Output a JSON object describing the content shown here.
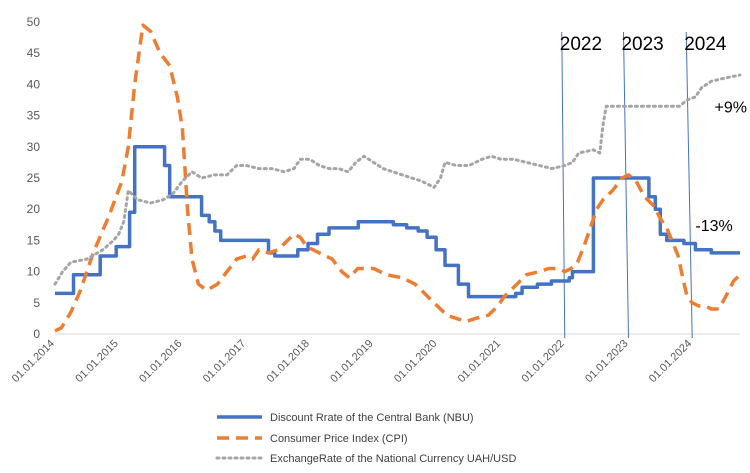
{
  "chart_data": {
    "type": "line",
    "title": "",
    "xlabel": "",
    "ylabel": "",
    "ylim": [
      0,
      50
    ],
    "yticks": [
      0,
      5,
      10,
      15,
      20,
      25,
      30,
      35,
      40,
      45,
      50
    ],
    "xlim": [
      2014.0,
      2024.75
    ],
    "x_tick_labels": [
      "01.01.2014",
      "01.01.2015",
      "01.01.2016",
      "01.01.2017",
      "01.01.2018",
      "01.01.2019",
      "01.01.2020",
      "01.01.2021",
      "01.01.2022",
      "01.01.2023",
      "01.01.2024"
    ],
    "x_tick_positions": [
      2014,
      2015,
      2016,
      2017,
      2018,
      2019,
      2020,
      2021,
      2022,
      2023,
      2024
    ],
    "grid": false,
    "legend_position": "bottom",
    "series": [
      {
        "name": "Discount Rrate of the Central Bank (NBU)",
        "color": "#4472C4",
        "style": "solid",
        "step": true,
        "points": [
          [
            2014.0,
            6.5
          ],
          [
            2014.29,
            9.5
          ],
          [
            2014.71,
            12.5
          ],
          [
            2014.96,
            14.0
          ],
          [
            2015.17,
            19.5
          ],
          [
            2015.25,
            30.0
          ],
          [
            2015.72,
            27.0
          ],
          [
            2015.8,
            22.0
          ],
          [
            2016.3,
            19.0
          ],
          [
            2016.42,
            18.0
          ],
          [
            2016.51,
            16.5
          ],
          [
            2016.6,
            15.0
          ],
          [
            2016.75,
            15.0
          ],
          [
            2017.35,
            13.0
          ],
          [
            2017.45,
            12.5
          ],
          [
            2017.81,
            13.5
          ],
          [
            2017.97,
            14.5
          ],
          [
            2018.12,
            16.0
          ],
          [
            2018.3,
            17.0
          ],
          [
            2018.76,
            18.0
          ],
          [
            2019.31,
            17.5
          ],
          [
            2019.52,
            17.0
          ],
          [
            2019.7,
            16.5
          ],
          [
            2019.84,
            15.5
          ],
          [
            2019.98,
            13.5
          ],
          [
            2020.12,
            11.0
          ],
          [
            2020.33,
            8.0
          ],
          [
            2020.49,
            6.0
          ],
          [
            2021.23,
            6.5
          ],
          [
            2021.33,
            7.5
          ],
          [
            2021.57,
            8.0
          ],
          [
            2021.79,
            8.5
          ],
          [
            2022.07,
            9.0
          ],
          [
            2022.12,
            10.0
          ],
          [
            2022.45,
            25.0
          ],
          [
            2023.32,
            22.0
          ],
          [
            2023.42,
            20.0
          ],
          [
            2023.5,
            16.0
          ],
          [
            2023.6,
            15.0
          ],
          [
            2023.87,
            14.5
          ],
          [
            2024.05,
            13.5
          ],
          [
            2024.3,
            13.0
          ],
          [
            2024.75,
            13.0
          ]
        ]
      },
      {
        "name": "Consumer Price Index (CPI)",
        "color": "#ED7D31",
        "style": "dashed",
        "step": false,
        "points": [
          [
            2014.0,
            0.5
          ],
          [
            2014.1,
            1.0
          ],
          [
            2014.25,
            3.5
          ],
          [
            2014.4,
            7.0
          ],
          [
            2014.6,
            13.0
          ],
          [
            2014.85,
            19.0
          ],
          [
            2015.05,
            24.5
          ],
          [
            2015.15,
            30.0
          ],
          [
            2015.25,
            40.0
          ],
          [
            2015.38,
            49.5
          ],
          [
            2015.5,
            48.5
          ],
          [
            2015.65,
            45.0
          ],
          [
            2015.8,
            43.0
          ],
          [
            2015.92,
            38.0
          ],
          [
            2016.0,
            33.0
          ],
          [
            2016.08,
            20.0
          ],
          [
            2016.15,
            12.0
          ],
          [
            2016.25,
            8.0
          ],
          [
            2016.38,
            7.0
          ],
          [
            2016.55,
            8.0
          ],
          [
            2016.7,
            10.0
          ],
          [
            2016.85,
            12.0
          ],
          [
            2017.0,
            12.5
          ],
          [
            2017.1,
            12.0
          ],
          [
            2017.2,
            13.5
          ],
          [
            2017.35,
            13.0
          ],
          [
            2017.5,
            13.5
          ],
          [
            2017.65,
            15.0
          ],
          [
            2017.75,
            16.0
          ],
          [
            2017.85,
            15.5
          ],
          [
            2017.95,
            14.0
          ],
          [
            2018.15,
            13.0
          ],
          [
            2018.35,
            12.0
          ],
          [
            2018.5,
            10.0
          ],
          [
            2018.62,
            9.0
          ],
          [
            2018.75,
            10.5
          ],
          [
            2019.0,
            10.5
          ],
          [
            2019.2,
            9.5
          ],
          [
            2019.45,
            9.0
          ],
          [
            2019.65,
            8.0
          ],
          [
            2019.8,
            6.5
          ],
          [
            2019.95,
            5.0
          ],
          [
            2020.15,
            3.0
          ],
          [
            2020.3,
            2.5
          ],
          [
            2020.45,
            2.0
          ],
          [
            2020.6,
            2.5
          ],
          [
            2020.8,
            3.0
          ],
          [
            2020.95,
            4.5
          ],
          [
            2021.05,
            6.0
          ],
          [
            2021.25,
            8.0
          ],
          [
            2021.4,
            9.5
          ],
          [
            2021.6,
            10.0
          ],
          [
            2021.75,
            10.5
          ],
          [
            2021.9,
            10.5
          ],
          [
            2022.0,
            10.0
          ],
          [
            2022.1,
            10.5
          ],
          [
            2022.2,
            11.5
          ],
          [
            2022.3,
            14.0
          ],
          [
            2022.4,
            17.0
          ],
          [
            2022.5,
            20.0
          ],
          [
            2022.6,
            21.5
          ],
          [
            2022.75,
            23.0
          ],
          [
            2022.9,
            25.0
          ],
          [
            2023.0,
            25.5
          ],
          [
            2023.12,
            24.5
          ],
          [
            2023.25,
            22.0
          ],
          [
            2023.4,
            20.5
          ],
          [
            2023.5,
            18.5
          ],
          [
            2023.6,
            17.0
          ],
          [
            2023.7,
            14.5
          ],
          [
            2023.78,
            12.5
          ],
          [
            2023.85,
            9.0
          ],
          [
            2023.92,
            6.0
          ],
          [
            2024.0,
            5.0
          ],
          [
            2024.1,
            4.5
          ],
          [
            2024.2,
            4.5
          ],
          [
            2024.3,
            4.0
          ],
          [
            2024.42,
            4.0
          ],
          [
            2024.55,
            6.5
          ],
          [
            2024.65,
            8.5
          ],
          [
            2024.75,
            9.5
          ]
        ]
      },
      {
        "name": "ExchangeRate of the National Currency UAH/USD",
        "color": "#A5A5A5",
        "style": "dotted",
        "step": false,
        "points": [
          [
            2014.0,
            8.0
          ],
          [
            2014.12,
            10.0
          ],
          [
            2014.25,
            11.5
          ],
          [
            2014.5,
            12.0
          ],
          [
            2014.75,
            13.5
          ],
          [
            2014.92,
            15.0
          ],
          [
            2015.0,
            16.0
          ],
          [
            2015.08,
            18.0
          ],
          [
            2015.15,
            23.0
          ],
          [
            2015.3,
            21.5
          ],
          [
            2015.5,
            21.0
          ],
          [
            2015.7,
            21.5
          ],
          [
            2015.85,
            22.5
          ],
          [
            2016.0,
            24.5
          ],
          [
            2016.15,
            26.0
          ],
          [
            2016.3,
            25.0
          ],
          [
            2016.5,
            25.5
          ],
          [
            2016.7,
            25.5
          ],
          [
            2016.85,
            27.0
          ],
          [
            2017.0,
            27.0
          ],
          [
            2017.2,
            26.5
          ],
          [
            2017.4,
            26.5
          ],
          [
            2017.6,
            26.0
          ],
          [
            2017.75,
            26.5
          ],
          [
            2017.85,
            28.0
          ],
          [
            2018.0,
            28.0
          ],
          [
            2018.15,
            27.0
          ],
          [
            2018.3,
            26.5
          ],
          [
            2018.45,
            26.5
          ],
          [
            2018.6,
            26.0
          ],
          [
            2018.72,
            27.5
          ],
          [
            2018.85,
            28.5
          ],
          [
            2019.0,
            27.5
          ],
          [
            2019.15,
            26.5
          ],
          [
            2019.3,
            26.0
          ],
          [
            2019.45,
            25.5
          ],
          [
            2019.6,
            25.0
          ],
          [
            2019.75,
            24.5
          ],
          [
            2019.85,
            24.0
          ],
          [
            2019.95,
            23.5
          ],
          [
            2020.05,
            25.0
          ],
          [
            2020.12,
            27.5
          ],
          [
            2020.3,
            27.0
          ],
          [
            2020.5,
            27.0
          ],
          [
            2020.7,
            28.0
          ],
          [
            2020.85,
            28.5
          ],
          [
            2021.0,
            28.0
          ],
          [
            2021.2,
            28.0
          ],
          [
            2021.4,
            27.5
          ],
          [
            2021.6,
            27.0
          ],
          [
            2021.8,
            26.5
          ],
          [
            2022.0,
            27.0
          ],
          [
            2022.12,
            27.5
          ],
          [
            2022.22,
            29.0
          ],
          [
            2022.45,
            29.5
          ],
          [
            2022.55,
            29.0
          ],
          [
            2022.6,
            33.5
          ],
          [
            2022.65,
            36.5
          ],
          [
            2022.9,
            36.5
          ],
          [
            2023.1,
            36.5
          ],
          [
            2023.3,
            36.5
          ],
          [
            2023.55,
            36.5
          ],
          [
            2023.8,
            36.5
          ],
          [
            2023.92,
            37.5
          ],
          [
            2024.05,
            38.0
          ],
          [
            2024.15,
            39.5
          ],
          [
            2024.3,
            40.5
          ],
          [
            2024.5,
            41.0
          ],
          [
            2024.75,
            41.5
          ]
        ]
      }
    ],
    "vertical_markers": [
      {
        "label": "2022",
        "x": 2022.0
      },
      {
        "label": "2023",
        "x": 2023.0
      },
      {
        "label": "2024",
        "x": 2024.0
      }
    ],
    "annotations": [
      {
        "text": "+9%",
        "x": 2024.35,
        "y": 35.5
      },
      {
        "text": "-13%",
        "x": 2024.05,
        "y": 16.5
      }
    ]
  }
}
